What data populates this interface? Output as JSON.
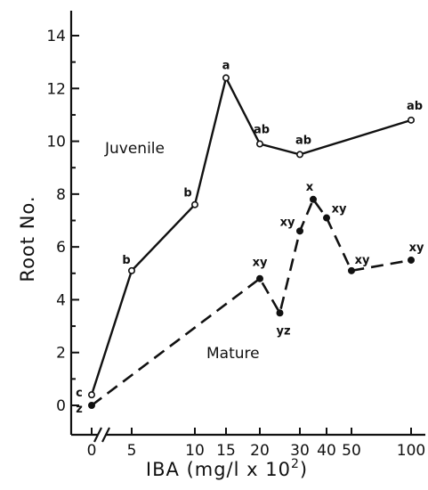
{
  "chart_data": {
    "type": "line",
    "xlabel": "IBA (mg/l x 10",
    "xlabel_sup": "2",
    "xlabel_close": ")",
    "ylabel": "Root No.",
    "ylim": [
      0,
      14
    ],
    "y_ticks": [
      "0",
      "2",
      "4",
      "6",
      "8",
      "10",
      "12",
      "14"
    ],
    "x_ticks": [
      "0",
      "5",
      "10",
      "15",
      "20",
      "30",
      "40",
      "50",
      "100"
    ],
    "axis_break": "x-axis between 0 and 5",
    "series": [
      {
        "name": "Juvenile",
        "marker": "open-circle",
        "line": "solid",
        "points": [
          {
            "x": 0,
            "y": 0.4,
            "label": "c"
          },
          {
            "x": 5,
            "y": 5.1,
            "label": "b"
          },
          {
            "x": 10,
            "y": 7.6,
            "label": "b"
          },
          {
            "x": 15,
            "y": 12.4,
            "label": "a"
          },
          {
            "x": 20,
            "y": 9.9,
            "label": "ab"
          },
          {
            "x": 30,
            "y": 9.5,
            "label": "ab"
          },
          {
            "x": 100,
            "y": 10.8,
            "label": "ab"
          }
        ]
      },
      {
        "name": "Mature",
        "marker": "filled-circle",
        "line": "dashed",
        "points": [
          {
            "x": 0,
            "y": 0.0,
            "label": "z"
          },
          {
            "x": 20,
            "y": 4.8,
            "label": "xy"
          },
          {
            "x": 25,
            "y": 3.5,
            "label": "yz"
          },
          {
            "x": 30,
            "y": 6.6,
            "label": "xy"
          },
          {
            "x": 35,
            "y": 7.8,
            "label": "x"
          },
          {
            "x": 40,
            "y": 7.1,
            "label": "xy"
          },
          {
            "x": 50,
            "y": 5.1,
            "label": "xy"
          },
          {
            "x": 100,
            "y": 5.5,
            "label": "xy"
          }
        ]
      }
    ]
  }
}
